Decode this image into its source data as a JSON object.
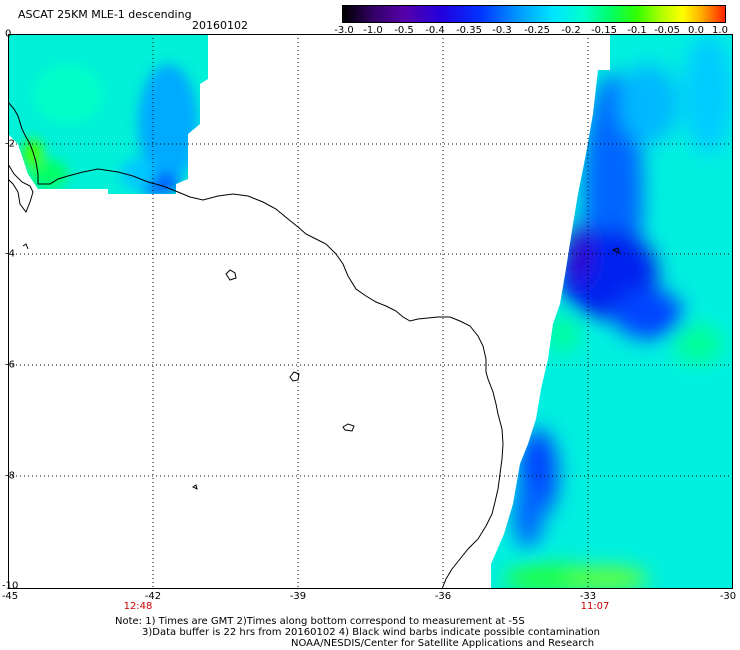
{
  "title": "ASCAT 25KM MLE-1 descending",
  "date": "20160102",
  "colorbar": {
    "ticks": [
      "-3.0",
      "-1.0",
      "-0.5",
      "-0.4",
      "-0.35",
      "-0.3",
      "-0.25",
      "-0.2",
      "-0.15",
      "-0.1",
      "-0.05",
      "0.0",
      "1.0"
    ]
  },
  "axes": {
    "y_ticks": [
      "0",
      "-2",
      "-4",
      "-6",
      "-8",
      "-10"
    ],
    "x_ticks": [
      "-45",
      "-42",
      "-39",
      "-36",
      "-33",
      "-30"
    ]
  },
  "times": {
    "left": "12:48",
    "right": "11:07"
  },
  "notes": {
    "line1": "Note: 1) Times are GMT 2)Times along bottom correspond to measurement at -5S",
    "line2": "3)Data buffer is 22 hrs from 20160102 4) Black wind barbs indicate possible contamination",
    "line3": "NOAA/NESDIS/Center for Satellite Applications and Research"
  },
  "colors": {
    "field_cyan": "#00f0e0",
    "field_blue": "#0044ff",
    "field_violet": "#3300cc",
    "field_green": "#00ff66",
    "time_red": "#cc0000"
  }
}
